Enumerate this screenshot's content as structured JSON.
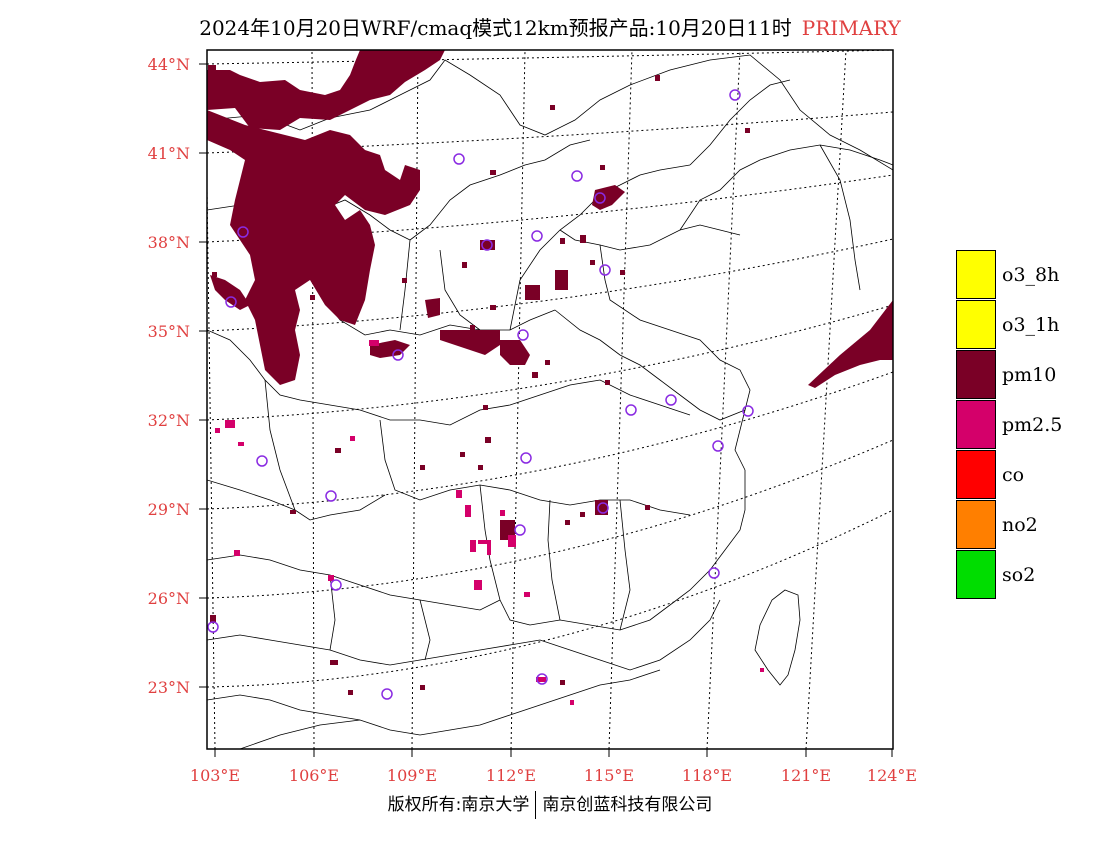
{
  "title": {
    "main": "2024年10月20日WRF/cmaq模式12km预报产品:10月20日11时",
    "tag": "PRIMARY"
  },
  "lat_labels": [
    "44°N",
    "41°N",
    "38°N",
    "35°N",
    "32°N",
    "29°N",
    "26°N",
    "23°N"
  ],
  "lon_labels": [
    "103°E",
    "106°E",
    "109°E",
    "112°E",
    "115°E",
    "118°E",
    "121°E",
    "124°E"
  ],
  "legend": [
    {
      "label": "o3_8h",
      "color": "#ffff00"
    },
    {
      "label": "o3_1h",
      "color": "#ffff00"
    },
    {
      "label": "pm10",
      "color": "#7a0026"
    },
    {
      "label": "pm2.5",
      "color": "#d4006a"
    },
    {
      "label": "co",
      "color": "#ff0000"
    },
    {
      "label": "no2",
      "color": "#ff7f00"
    },
    {
      "label": "so2",
      "color": "#00dd00"
    }
  ],
  "footer": {
    "left": "版权所有:南京大学",
    "right": "南京创蓝科技有限公司"
  },
  "colors": {
    "pm10": "#7a0026",
    "pm25": "#d4006a",
    "station": "#8a2be2",
    "label_red": "#e04040"
  }
}
